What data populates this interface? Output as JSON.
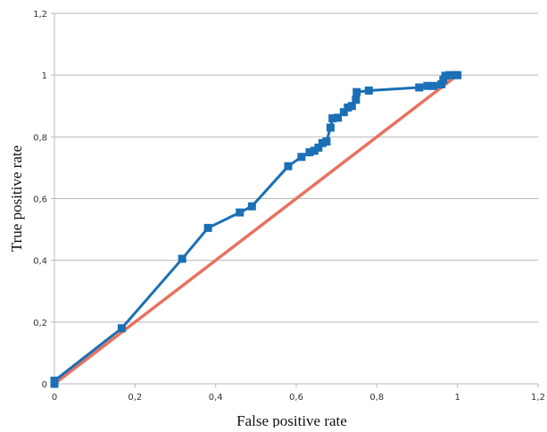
{
  "chart_data": {
    "type": "line",
    "xlabel": "False positive rate",
    "ylabel": "True positive rate",
    "xlim": [
      0,
      1.2
    ],
    "ylim": [
      0,
      1.2
    ],
    "x_ticks": [
      "0",
      "0,2",
      "0,4",
      "0,6",
      "0,8",
      "1",
      "1,2"
    ],
    "y_ticks": [
      "0",
      "0,2",
      "0,4",
      "0,6",
      "0,8",
      "1",
      "1,2"
    ],
    "grid": "horizontal",
    "series": [
      {
        "color": "#1a6fb5",
        "marker": "square",
        "points": [
          [
            0,
            0
          ],
          [
            0,
            0.01
          ],
          [
            0.167,
            0.18
          ],
          [
            0.317,
            0.405
          ],
          [
            0.381,
            0.505
          ],
          [
            0.46,
            0.555
          ],
          [
            0.49,
            0.575
          ],
          [
            0.58,
            0.705
          ],
          [
            0.613,
            0.735
          ],
          [
            0.633,
            0.75
          ],
          [
            0.645,
            0.755
          ],
          [
            0.655,
            0.765
          ],
          [
            0.665,
            0.78
          ],
          [
            0.675,
            0.785
          ],
          [
            0.685,
            0.83
          ],
          [
            0.69,
            0.86
          ],
          [
            0.703,
            0.862
          ],
          [
            0.718,
            0.88
          ],
          [
            0.728,
            0.895
          ],
          [
            0.738,
            0.9
          ],
          [
            0.748,
            0.92
          ],
          [
            0.75,
            0.945
          ],
          [
            0.78,
            0.95
          ],
          [
            0.905,
            0.96
          ],
          [
            0.925,
            0.965
          ],
          [
            0.94,
            0.965
          ],
          [
            0.96,
            0.97
          ],
          [
            0.965,
            0.985
          ],
          [
            0.97,
            0.998
          ],
          [
            0.98,
            1.0
          ],
          [
            0.995,
            1.0
          ],
          [
            1.0,
            1.0
          ]
        ]
      },
      {
        "color": "#e8725e",
        "marker": "none",
        "points": [
          [
            0,
            0
          ],
          [
            1,
            1
          ]
        ]
      }
    ]
  }
}
